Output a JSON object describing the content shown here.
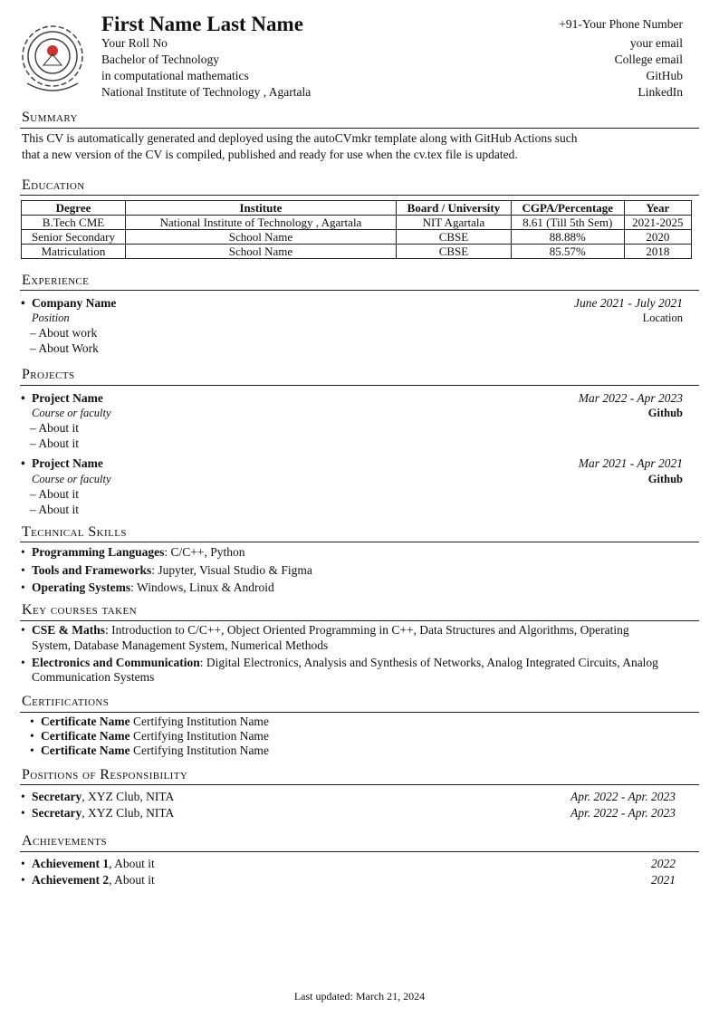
{
  "header": {
    "name": "First Name Last Name",
    "left": [
      "Your Roll No",
      "Bachelor of Technology",
      "in computational mathematics",
      "National Institute of Technology , Agartala"
    ],
    "right": [
      "+91-Your Phone Number",
      "your email",
      "College email",
      "GitHub",
      "LinkedIn"
    ]
  },
  "summary": {
    "title": "Summary",
    "lines": [
      "This CV is automatically generated and deployed using the autoCVmkr template along with GitHub Actions such",
      "that a new version of the CV is compiled, published and ready for use when the cv.tex file is updated."
    ]
  },
  "education": {
    "title": "Education",
    "headers": [
      "Degree",
      "Institute",
      "Board / University",
      "CGPA/Percentage",
      "Year"
    ],
    "rows": [
      [
        "B.Tech CME",
        "National Institute of Technology , Agartala",
        "NIT Agartala",
        "8.61 (Till 5th Sem)",
        "2021-2025"
      ],
      [
        "Senior Secondary",
        "School Name",
        "CBSE",
        "88.88%",
        "2020"
      ],
      [
        "Matriculation",
        "School Name",
        "CBSE",
        "85.57%",
        "2018"
      ]
    ]
  },
  "experience": {
    "title": "Experience",
    "company": "Company Name",
    "dates": "June 2021 - July 2021",
    "position": "Position",
    "location": "Location",
    "items": [
      "– About work",
      "– About Work"
    ]
  },
  "projects": {
    "title": "Projects",
    "list": [
      {
        "name": "Project Name",
        "dates": "Mar 2022 - Apr 2023",
        "course": "Course or faculty",
        "link": "Github",
        "items": [
          "– About it",
          "– About it"
        ]
      },
      {
        "name": "Project Name",
        "dates": "Mar 2021 - Apr 2021",
        "course": "Course or faculty",
        "link": "Github",
        "items": [
          "– About it",
          "– About it"
        ]
      }
    ]
  },
  "skills": {
    "title": "Technical Skills",
    "items": [
      {
        "label": "Programming Languages",
        "value": ":  C/C++, Python"
      },
      {
        "label": "Tools and Frameworks",
        "value": ": Jupyter, Visual Studio & Figma"
      },
      {
        "label": "Operating Systems",
        "value": ": Windows, Linux & Android"
      }
    ]
  },
  "courses": {
    "title": "Key courses taken",
    "items": [
      {
        "label": "CSE & Maths",
        "value": ": Introduction to C/C++, Object Oriented Programming in C++, Data Structures and Algorithms, Operating",
        "cont": "System, Database Management System, Numerical Methods"
      },
      {
        "label": "Electronics and Communication",
        "value": ": Digital Electronics, Analysis and Synthesis of Networks, Analog Integrated Circuits, Analog",
        "cont": "Communication Systems"
      }
    ]
  },
  "certifications": {
    "title": "Certifications",
    "items": [
      {
        "name": "Certificate Name",
        "inst": " Certifying Institution Name"
      },
      {
        "name": "Certificate Name",
        "inst": " Certifying Institution Name"
      },
      {
        "name": "Certificate Name",
        "inst": " Certifying Institution Name"
      }
    ]
  },
  "positions": {
    "title": "Positions of Responsibility",
    "items": [
      {
        "role": "Secretary",
        "org": ", XYZ Club, NITA",
        "dates": "Apr. 2022 - Apr. 2023"
      },
      {
        "role": "Secretary",
        "org": ", XYZ Club, NITA",
        "dates": "Apr. 2022 - Apr. 2023"
      }
    ]
  },
  "achievements": {
    "title": "Achievements",
    "items": [
      {
        "name": "Achievement 1",
        "text": ",  About it",
        "year": "2022"
      },
      {
        "name": "Achievement 2",
        "text": ", About it",
        "year": "2021"
      }
    ]
  },
  "footer": "Last updated: March 21, 2024"
}
